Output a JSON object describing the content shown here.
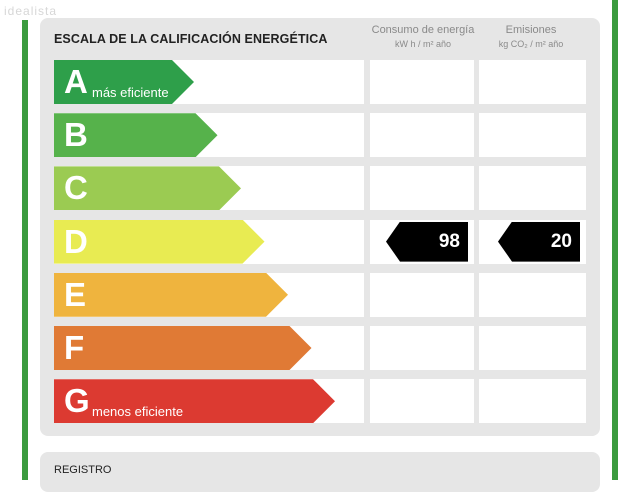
{
  "watermark": "idealista",
  "header": {
    "title": "ESCALA DE LA CALIFICACIÓN ENERGÉTICA",
    "col1": {
      "label": "Consumo de energía",
      "unit": "kW h / m² año"
    },
    "col2": {
      "label": "Emisiones",
      "unit": "kg CO₂ / m² año"
    }
  },
  "ratings": [
    {
      "letter": "A",
      "sub": "más eficiente",
      "color": "#2e9f4a",
      "level": 1
    },
    {
      "letter": "B",
      "sub": "",
      "color": "#56b24b",
      "level": 2
    },
    {
      "letter": "C",
      "sub": "",
      "color": "#9bcb52",
      "level": 3
    },
    {
      "letter": "D",
      "sub": "",
      "color": "#e8eb52",
      "level": 4
    },
    {
      "letter": "E",
      "sub": "",
      "color": "#efb43e",
      "level": 5
    },
    {
      "letter": "F",
      "sub": "",
      "color": "#e07a35",
      "level": 6
    },
    {
      "letter": "G",
      "sub": "menos eficiente",
      "color": "#dc3a31",
      "level": 7
    }
  ],
  "current": {
    "rating": "D",
    "consumption": "98",
    "emissions": "20"
  },
  "footer": {
    "title": "REGISTRO"
  },
  "colors": {
    "frame": "#3b9b3e",
    "panel": "#e6e6e6",
    "badge": "#000000"
  }
}
